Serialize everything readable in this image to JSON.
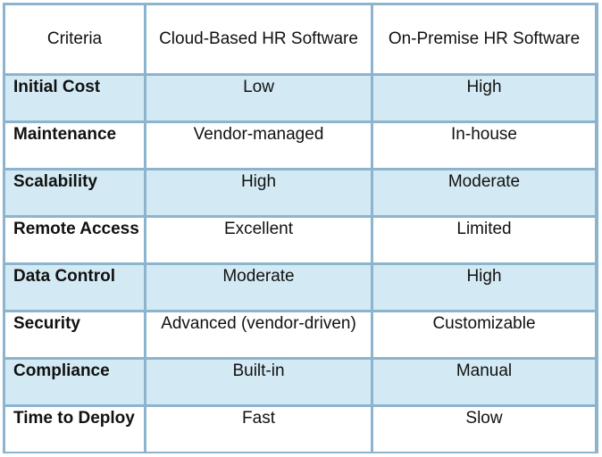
{
  "table": {
    "headers": [
      "Criteria",
      "Cloud-Based HR Software",
      "On-Premise HR Software"
    ],
    "rows": [
      {
        "criteria": "Initial Cost",
        "cloud": "Low",
        "onprem": "High"
      },
      {
        "criteria": "Maintenance",
        "cloud": "Vendor-managed",
        "onprem": "In-house"
      },
      {
        "criteria": "Scalability",
        "cloud": "High",
        "onprem": "Moderate"
      },
      {
        "criteria": "Remote Access",
        "cloud": "Excellent",
        "onprem": "Limited"
      },
      {
        "criteria": "Data Control",
        "cloud": "Moderate",
        "onprem": "High"
      },
      {
        "criteria": "Security",
        "cloud": "Advanced (vendor-driven)",
        "onprem": "Customizable"
      },
      {
        "criteria": "Compliance",
        "cloud": "Built-in",
        "onprem": "Manual"
      },
      {
        "criteria": "Time to Deploy",
        "cloud": "Fast",
        "onprem": "Slow"
      }
    ]
  },
  "colors": {
    "border": "#8cb4cf",
    "shaded_row": "#d3eaf4",
    "plain_row": "#ffffff"
  }
}
